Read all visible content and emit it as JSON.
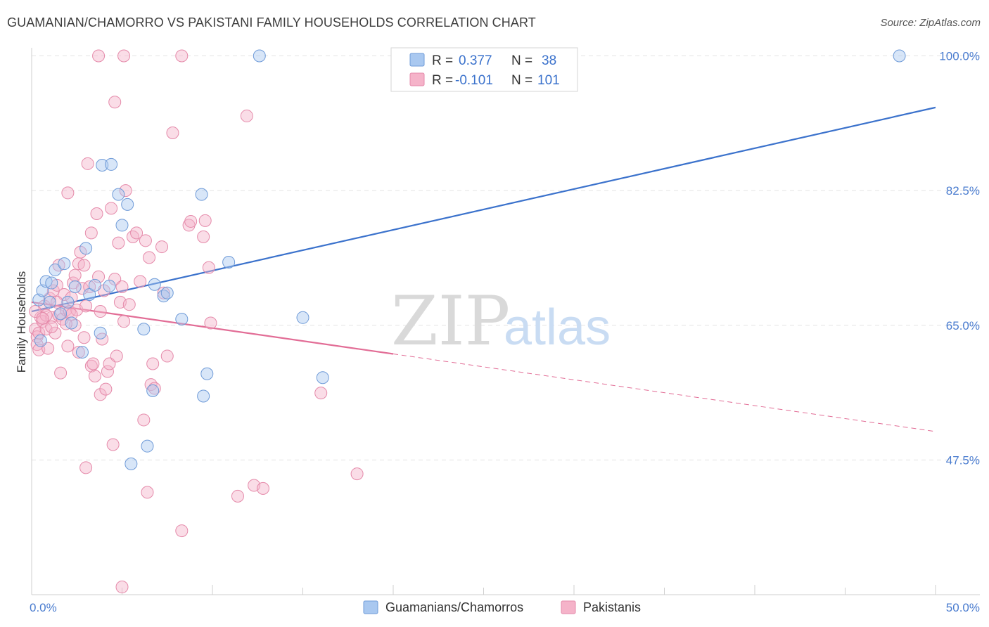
{
  "title": "GUAMANIAN/CHAMORRO VS PAKISTANI FAMILY HOUSEHOLDS CORRELATION CHART",
  "source": "Source: ZipAtlas.com",
  "watermark": {
    "zip": "ZIP",
    "atlas": "atlas"
  },
  "legend": {
    "r_label": "R =",
    "n_label": "N =",
    "rows": [
      {
        "r": "0.377",
        "n": "38"
      },
      {
        "r": "-0.101",
        "n": "101"
      }
    ]
  },
  "colors": {
    "blue": "#3b72cc",
    "blue_fill": "#a9c8f0",
    "pink": "#e26d96",
    "pink_fill": "#f5b3c9"
  },
  "chart_data": {
    "type": "scatter",
    "title": "GUAMANIAN/CHAMORRO VS PAKISTANI FAMILY HOUSEHOLDS CORRELATION CHART",
    "xlabel": "",
    "ylabel": "Family Households",
    "xlim": [
      0,
      50
    ],
    "ylim": [
      30,
      101.6
    ],
    "x_tick_labels": [
      "0.0%",
      "50.0%"
    ],
    "y_ticks": [
      47.5,
      65.0,
      82.5,
      100.0
    ],
    "y_tick_labels": [
      "47.5%",
      "65.0%",
      "82.5%",
      "100.0%"
    ],
    "series": [
      {
        "name": "Guamanians/Chamorros",
        "color": "#3b72cc",
        "trend": {
          "x": [
            0,
            50
          ],
          "y": [
            66.8,
            93.3
          ],
          "dashed_from": null
        },
        "points": [
          [
            0.4,
            68.3
          ],
          [
            0.5,
            63.0
          ],
          [
            0.6,
            69.5
          ],
          [
            0.8,
            70.7
          ],
          [
            1.0,
            68.0
          ],
          [
            1.1,
            70.5
          ],
          [
            1.3,
            72.2
          ],
          [
            1.6,
            66.5
          ],
          [
            1.8,
            73.0
          ],
          [
            2.0,
            68.0
          ],
          [
            2.2,
            65.3
          ],
          [
            2.4,
            70.0
          ],
          [
            2.8,
            61.5
          ],
          [
            3.0,
            75.0
          ],
          [
            3.2,
            69.0
          ],
          [
            3.5,
            70.2
          ],
          [
            3.8,
            64.0
          ],
          [
            3.9,
            85.8
          ],
          [
            4.3,
            70.1
          ],
          [
            4.4,
            85.9
          ],
          [
            4.8,
            82.0
          ],
          [
            5.0,
            78.0
          ],
          [
            5.3,
            80.7
          ],
          [
            5.5,
            47.0
          ],
          [
            6.2,
            64.5
          ],
          [
            6.4,
            49.3
          ],
          [
            6.7,
            56.5
          ],
          [
            6.8,
            70.3
          ],
          [
            7.3,
            68.8
          ],
          [
            7.5,
            69.2
          ],
          [
            8.3,
            65.8
          ],
          [
            9.4,
            82.0
          ],
          [
            9.5,
            55.8
          ],
          [
            9.7,
            58.7
          ],
          [
            10.9,
            73.2
          ],
          [
            12.6,
            100.0
          ],
          [
            15.0,
            66.0
          ],
          [
            16.1,
            58.2
          ],
          [
            48.0,
            100.0
          ]
        ]
      },
      {
        "name": "Pakistanis",
        "color": "#e26d96",
        "trend": {
          "x": [
            0,
            50
          ],
          "y": [
            68.0,
            51.2
          ],
          "dashed_from": 20
        },
        "points": [
          [
            0.2,
            64.5
          ],
          [
            0.3,
            63.5
          ],
          [
            0.3,
            62.5
          ],
          [
            0.4,
            64.0
          ],
          [
            0.4,
            61.8
          ],
          [
            0.5,
            66.0
          ],
          [
            0.6,
            65.5
          ],
          [
            0.7,
            67.5
          ],
          [
            0.8,
            64.5
          ],
          [
            0.9,
            62.0
          ],
          [
            1.0,
            68.5
          ],
          [
            1.1,
            66.0
          ],
          [
            1.2,
            69.5
          ],
          [
            1.3,
            64.0
          ],
          [
            1.4,
            70.2
          ],
          [
            1.5,
            66.3
          ],
          [
            1.5,
            72.8
          ],
          [
            1.6,
            58.8
          ],
          [
            1.7,
            65.8
          ],
          [
            1.8,
            69.0
          ],
          [
            1.9,
            67.0
          ],
          [
            2.0,
            82.2
          ],
          [
            2.0,
            62.3
          ],
          [
            2.1,
            66.8
          ],
          [
            2.2,
            68.6
          ],
          [
            2.3,
            70.5
          ],
          [
            2.4,
            71.5
          ],
          [
            2.4,
            65.0
          ],
          [
            2.5,
            67.0
          ],
          [
            2.6,
            73.0
          ],
          [
            2.6,
            61.5
          ],
          [
            2.7,
            74.5
          ],
          [
            2.8,
            69.8
          ],
          [
            2.9,
            72.8
          ],
          [
            3.0,
            67.5
          ],
          [
            3.0,
            46.5
          ],
          [
            3.1,
            86.0
          ],
          [
            3.2,
            70.0
          ],
          [
            3.3,
            77.0
          ],
          [
            3.3,
            59.7
          ],
          [
            3.4,
            60.0
          ],
          [
            3.5,
            58.4
          ],
          [
            3.6,
            79.5
          ],
          [
            3.7,
            71.3
          ],
          [
            3.8,
            66.8
          ],
          [
            3.8,
            56.0
          ],
          [
            3.9,
            63.2
          ],
          [
            4.0,
            69.5
          ],
          [
            4.1,
            56.7
          ],
          [
            4.2,
            59.0
          ],
          [
            4.3,
            60.0
          ],
          [
            4.4,
            80.2
          ],
          [
            4.5,
            49.5
          ],
          [
            4.6,
            71.0
          ],
          [
            4.7,
            61.0
          ],
          [
            4.8,
            75.7
          ],
          [
            4.9,
            68.0
          ],
          [
            5.0,
            70.0
          ],
          [
            5.1,
            65.5
          ],
          [
            5.2,
            82.5
          ],
          [
            5.4,
            67.7
          ],
          [
            5.6,
            76.5
          ],
          [
            5.8,
            77.0
          ],
          [
            6.0,
            70.7
          ],
          [
            6.2,
            52.7
          ],
          [
            6.3,
            76.0
          ],
          [
            6.4,
            43.3
          ],
          [
            6.5,
            73.8
          ],
          [
            6.6,
            57.3
          ],
          [
            6.7,
            60.0
          ],
          [
            6.8,
            56.8
          ],
          [
            7.2,
            75.2
          ],
          [
            7.3,
            69.2
          ],
          [
            7.5,
            61.0
          ],
          [
            7.8,
            90.0
          ],
          [
            8.3,
            38.3
          ],
          [
            8.7,
            78.0
          ],
          [
            8.8,
            78.5
          ],
          [
            9.5,
            76.5
          ],
          [
            9.6,
            78.6
          ],
          [
            9.8,
            72.5
          ],
          [
            9.9,
            65.3
          ],
          [
            11.4,
            42.8
          ],
          [
            11.9,
            92.2
          ],
          [
            12.3,
            44.2
          ],
          [
            12.8,
            43.8
          ],
          [
            16.0,
            56.2
          ],
          [
            18.0,
            45.7
          ],
          [
            3.7,
            100.0
          ],
          [
            5.1,
            100.0
          ],
          [
            8.3,
            100.0
          ],
          [
            4.6,
            94.0
          ],
          [
            5.0,
            31.0
          ],
          [
            1.4,
            68.0
          ],
          [
            0.8,
            66.3
          ],
          [
            1.9,
            65.2
          ],
          [
            2.9,
            63.4
          ],
          [
            0.2,
            66.8
          ],
          [
            1.1,
            64.8
          ],
          [
            0.6,
            65.9
          ],
          [
            2.2,
            66.4
          ]
        ]
      }
    ]
  },
  "bottom_legend": [
    "Guamanians/Chamorros",
    "Pakistanis"
  ]
}
